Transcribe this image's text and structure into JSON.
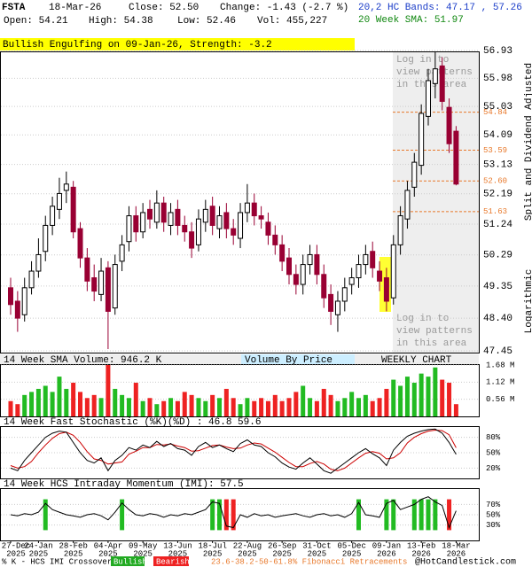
{
  "header": {
    "symbol": "FSTA",
    "date": "18-Mar-26",
    "close": "Close: 52.50",
    "change": "Change: -1.43 (-2.7 %)",
    "open": "Open: 54.21",
    "high": "High: 54.38",
    "low": "Low: 52.46",
    "volume": "Vol: 455,227",
    "bands": "20,2 HC Bands: 47.17 , 57.26",
    "sma": "20 Week SMA: 51.97",
    "pattern": "Bullish Engulfing on 09-Jan-26, Strength: -3.2"
  },
  "notes": {
    "login": [
      "Log in to",
      "view patterns",
      "in this area"
    ],
    "adjusted": "Split and Dividend Adjusted",
    "scale": "Logarithmic",
    "volume_by_price": "Volume By Price",
    "period": "WEEKLY CHART",
    "crossover": "% K - HCS IMI Crossover:",
    "bullish": "Bullish",
    "bearish": "Bearish",
    "fibonacci": "23.6-38.2-50-61.8% Fibonacci Retracements",
    "source": "@HotCandlestick.com"
  },
  "chart_data": {
    "type": "candlestick",
    "log_scale": true,
    "up_color": "#008000",
    "down_color": "#990033",
    "categories": [
      [
        "27-Dec",
        "2025"
      ],
      null,
      null,
      null,
      [
        "24-Jan",
        "2025"
      ],
      null,
      null,
      null,
      null,
      [
        "28-Feb",
        "2025"
      ],
      null,
      null,
      null,
      null,
      [
        "04-Apr",
        "2025"
      ],
      null,
      null,
      null,
      null,
      [
        "09-May",
        "2025"
      ],
      null,
      null,
      null,
      null,
      [
        "13-Jun",
        "2025"
      ],
      null,
      null,
      null,
      null,
      [
        "18-Jul",
        "2025"
      ],
      null,
      null,
      null,
      null,
      [
        "22-Aug",
        "2025"
      ],
      null,
      null,
      null,
      null,
      [
        "26-Sep",
        "2025"
      ],
      null,
      null,
      null,
      null,
      [
        "31-Oct",
        "2025"
      ],
      null,
      null,
      null,
      null,
      [
        "05-Dec",
        "2025"
      ],
      null,
      null,
      null,
      null,
      [
        "09-Jan",
        "2026"
      ],
      null,
      null,
      null,
      null,
      [
        "13-Feb",
        "2026"
      ],
      null,
      null,
      null,
      null,
      [
        "18-Mar",
        "2026"
      ]
    ],
    "open": [
      49.3,
      48.9,
      48.5,
      49.3,
      49.8,
      50.4,
      51.2,
      51.7,
      52.3,
      52.4,
      51.1,
      50.2,
      49.6,
      49.1,
      49.9,
      48.7,
      50.1,
      50.7,
      51.5,
      51.0,
      51.7,
      51.3,
      51.9,
      51.2,
      51.7,
      51.2,
      51.0,
      50.6,
      51.3,
      51.8,
      51.1,
      51.6,
      51.1,
      50.8,
      51.6,
      51.9,
      51.5,
      51.3,
      50.9,
      50.6,
      50.2,
      49.7,
      49.4,
      50.0,
      50.3,
      49.7,
      49.1,
      48.5,
      48.9,
      49.4,
      49.6,
      50.0,
      50.4,
      49.8,
      49.6,
      49.0,
      50.6,
      51.4,
      52.4,
      53.1,
      54.7,
      55.8,
      56.4,
      55.0,
      54.21
    ],
    "high": [
      49.6,
      49.2,
      49.6,
      50.1,
      50.8,
      51.5,
      52.1,
      52.7,
      52.9,
      52.6,
      51.3,
      50.5,
      50.0,
      50.2,
      50.1,
      50.3,
      50.9,
      51.8,
      51.8,
      51.9,
      52.0,
      52.3,
      52.1,
      51.9,
      52.0,
      51.5,
      51.3,
      51.7,
      52.0,
      52.1,
      51.8,
      51.9,
      51.4,
      51.9,
      52.5,
      52.2,
      51.8,
      51.6,
      51.2,
      50.9,
      50.5,
      50.0,
      50.3,
      50.6,
      50.6,
      50.0,
      49.4,
      49.2,
      49.6,
      49.9,
      50.3,
      50.6,
      50.7,
      50.1,
      49.9,
      50.9,
      51.8,
      52.6,
      53.5,
      55.1,
      56.3,
      56.9,
      56.7,
      55.3,
      54.38
    ],
    "low": [
      48.5,
      48.0,
      48.3,
      49.1,
      49.6,
      50.1,
      50.9,
      51.4,
      51.9,
      50.8,
      49.9,
      49.2,
      48.9,
      48.9,
      47.5,
      48.5,
      49.8,
      50.4,
      50.7,
      50.8,
      51.1,
      51.1,
      51.0,
      50.9,
      50.9,
      50.7,
      50.2,
      50.4,
      51.0,
      50.9,
      50.8,
      50.8,
      50.6,
      50.5,
      51.3,
      51.2,
      51.1,
      50.6,
      50.3,
      49.8,
      49.4,
      49.1,
      49.1,
      49.7,
      49.4,
      48.7,
      48.2,
      48.0,
      48.6,
      49.1,
      49.3,
      49.7,
      49.6,
      49.2,
      48.6,
      48.8,
      50.3,
      51.1,
      52.1,
      52.8,
      54.4,
      55.3,
      54.9,
      53.5,
      52.46
    ],
    "close": [
      48.8,
      48.4,
      49.3,
      49.8,
      50.3,
      51.2,
      51.8,
      52.2,
      52.5,
      51.0,
      50.2,
      49.5,
      49.2,
      49.8,
      48.6,
      50.0,
      50.6,
      51.5,
      51.0,
      51.6,
      51.4,
      51.9,
      51.3,
      51.6,
      51.2,
      51.0,
      50.5,
      51.4,
      51.7,
      51.2,
      51.5,
      51.1,
      50.9,
      51.6,
      51.9,
      51.5,
      51.4,
      50.9,
      50.6,
      50.1,
      49.7,
      49.4,
      50.0,
      50.3,
      49.7,
      49.0,
      48.6,
      48.9,
      49.3,
      49.6,
      50.0,
      50.3,
      49.9,
      49.5,
      48.9,
      50.6,
      51.5,
      52.3,
      53.2,
      54.8,
      55.9,
      56.3,
      55.2,
      53.8,
      52.5
    ],
    "ylim": [
      47.45,
      56.93
    ],
    "yticks": [
      56.93,
      55.98,
      55.03,
      54.09,
      53.13,
      52.19,
      51.24,
      50.29,
      49.35,
      {
        "value": 48.4,
        "label": "48.40"
      },
      47.45
    ],
    "fib_color": "#e8782a",
    "fib_levels": [
      54.84,
      53.59,
      {
        "value": 52.6,
        "label": "52.60"
      },
      51.63
    ],
    "volume": {
      "title": "14 Week SMA Volume: 946.2 K",
      "values": [
        0.5,
        0.4,
        0.7,
        0.8,
        0.9,
        1.0,
        0.8,
        1.3,
        0.9,
        1.1,
        0.8,
        0.6,
        0.7,
        0.6,
        1.68,
        0.9,
        0.7,
        0.6,
        1.1,
        0.5,
        0.6,
        0.4,
        0.5,
        0.6,
        0.5,
        0.8,
        0.7,
        0.6,
        0.5,
        0.7,
        0.6,
        0.9,
        0.6,
        0.4,
        0.6,
        0.5,
        0.6,
        0.5,
        0.7,
        0.5,
        0.6,
        0.8,
        1.0,
        0.6,
        0.5,
        0.9,
        0.7,
        0.5,
        0.6,
        0.8,
        0.6,
        0.7,
        0.5,
        0.6,
        0.9,
        1.2,
        1.0,
        1.3,
        1.1,
        1.4,
        1.3,
        1.6,
        1.2,
        1.1,
        0.4
      ],
      "ylim": [
        0,
        1.68
      ],
      "yticks": [
        {
          "value": 1.68,
          "label": "1.68 M"
        },
        {
          "value": 1.12,
          "label": "1.12 M"
        },
        {
          "value": 0.56,
          "label": "0.56 M"
        }
      ],
      "up_color": "#22bb22",
      "down_color": "#ee2222"
    },
    "stochastic": {
      "title": "14 Week Fast Stochastic (%K)(%D) : 46.8  59.6",
      "k": [
        20,
        15,
        35,
        50,
        65,
        80,
        88,
        92,
        90,
        70,
        50,
        35,
        30,
        40,
        15,
        35,
        45,
        60,
        55,
        65,
        60,
        72,
        62,
        68,
        58,
        55,
        45,
        62,
        70,
        60,
        65,
        58,
        52,
        68,
        75,
        65,
        62,
        50,
        42,
        30,
        22,
        18,
        30,
        40,
        28,
        15,
        10,
        20,
        30,
        40,
        50,
        58,
        48,
        40,
        25,
        55,
        70,
        82,
        88,
        92,
        95,
        96,
        88,
        70,
        46.8
      ],
      "d": [
        25,
        20,
        23,
        33,
        50,
        65,
        78,
        87,
        90,
        84,
        70,
        52,
        38,
        35,
        28,
        30,
        32,
        47,
        53,
        60,
        60,
        66,
        65,
        67,
        63,
        60,
        53,
        54,
        59,
        64,
        65,
        61,
        58,
        59,
        65,
        69,
        67,
        59,
        51,
        41,
        31,
        23,
        23,
        29,
        33,
        28,
        18,
        15,
        20,
        30,
        40,
        49,
        52,
        49,
        38,
        40,
        50,
        69,
        80,
        87,
        92,
        94,
        93,
        85,
        59.6
      ],
      "k_color": "#000000",
      "d_color": "#cc0000",
      "ylim": [
        0,
        100
      ],
      "yticks": [
        {
          "value": 80,
          "label": "80%"
        },
        {
          "value": 50,
          "label": "50%"
        },
        {
          "value": 20,
          "label": "20%"
        }
      ]
    },
    "imi": {
      "title": "14 Week HCS Intraday Momentum (IMI): 57.5",
      "values": [
        50,
        48,
        52,
        50,
        55,
        72,
        60,
        55,
        50,
        48,
        45,
        50,
        52,
        48,
        40,
        55,
        73,
        60,
        50,
        48,
        52,
        50,
        45,
        50,
        48,
        52,
        50,
        55,
        60,
        75,
        72,
        28,
        25,
        50,
        45,
        52,
        48,
        50,
        45,
        48,
        50,
        52,
        48,
        45,
        50,
        52,
        48,
        50,
        45,
        52,
        74,
        50,
        48,
        45,
        72,
        78,
        60,
        65,
        70,
        80,
        85,
        75,
        68,
        25,
        57.5
      ],
      "ylim": [
        0,
        100
      ],
      "yticks": [
        {
          "value": 70,
          "label": "70%"
        },
        {
          "value": 50,
          "label": "50%"
        },
        {
          "value": 30,
          "label": "30%"
        }
      ]
    }
  }
}
